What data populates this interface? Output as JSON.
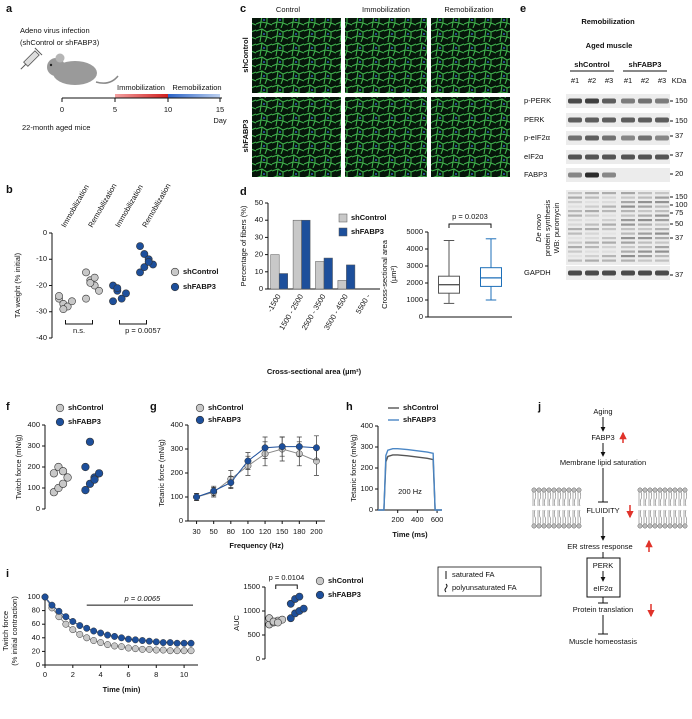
{
  "figure": {
    "panel_labels": [
      "a",
      "b",
      "c",
      "d",
      "e",
      "f",
      "g",
      "h",
      "i",
      "j"
    ]
  },
  "panel_a": {
    "title": [
      "Adeno virus infection",
      "(shControl or shFABP3)"
    ],
    "phases": [
      "Immobilization",
      "Remobilization"
    ],
    "days": [
      "0",
      "5",
      "10",
      "15"
    ],
    "day_label": "Day",
    "subjects": "22-month aged mice"
  },
  "panel_c": {
    "columns": [
      "Control",
      "Immobilization",
      "Remobilization"
    ],
    "rows": [
      "shControl",
      "shFABP3"
    ]
  },
  "panel_e": {
    "title": "Remobilization",
    "subtitle": "Aged muscle",
    "groups": [
      "shControl",
      "shFABP3"
    ],
    "lanes": [
      "#1",
      "#2",
      "#3",
      "#1",
      "#2",
      "#3"
    ],
    "unit": "KDa",
    "rows": [
      "p-PERK",
      "PERK",
      "p-eIF2α",
      "eIF2α",
      "FABP3"
    ],
    "puromycin_label": [
      "De novo",
      "protein synthesis",
      "WB: puromycin"
    ],
    "loading": "GAPDH",
    "markers": [
      "150",
      "150",
      "37",
      "37",
      "20",
      "150",
      "100",
      "75",
      "50",
      "37",
      "37"
    ]
  },
  "panel_j": {
    "nodes": [
      "Aging",
      "FABP3",
      "Membrane lipid saturation",
      "FLUIDITY",
      "ER stress response",
      "PERK",
      "eIF2α",
      "Protein translation",
      "Muscle homeostasis"
    ],
    "legend": [
      "saturated FA",
      "polyunsaturated FA"
    ]
  },
  "chart_data": [
    {
      "type": "strip",
      "ylabel": [
        "TA weight (% initial)"
      ],
      "categories": [
        "Immobilization",
        "Remobilization",
        "Immobilization",
        "Remobilization"
      ],
      "series": [
        {
          "name": "shControl",
          "color": "#c8c8c8",
          "groups": [
            [
              -25,
              -27,
              -28,
              -26,
              -24,
              -29
            ],
            [
              -15,
              -18,
              -20,
              -22,
              -25,
              -19,
              -17
            ]
          ]
        },
        {
          "name": "shFABP3",
          "color": "#1d4f9b",
          "groups": [
            [
              -20,
              -22,
              -25,
              -23,
              -26,
              -21
            ],
            [
              -5,
              -8,
              -10,
              -12,
              -15,
              -13,
              -11
            ]
          ]
        }
      ],
      "ylim": [
        -40,
        0
      ],
      "yticks": [
        -40,
        -30,
        -20,
        -10,
        0
      ],
      "annotations": [
        "n.s.",
        "p = 0.0057"
      ],
      "legend": "right"
    },
    {
      "type": "bar",
      "ylabel": [
        "Percentage of fibers (%)"
      ],
      "xlabel": "Cross-sectional area (µm²)",
      "categories": [
        "-1500",
        "1500 - 2500",
        "2500 - 3500",
        "3500 - 4500",
        "5500 -"
      ],
      "series": [
        {
          "name": "shControl",
          "color": "#c8c8c8",
          "values": [
            20,
            40,
            16,
            5,
            0
          ]
        },
        {
          "name": "shFABP3",
          "color": "#1d4f9b",
          "values": [
            9,
            40,
            18,
            14,
            0
          ]
        }
      ],
      "ylim": [
        0,
        50
      ],
      "yticks": [
        0,
        10,
        20,
        30,
        40,
        50
      ],
      "legend": "top-right"
    },
    {
      "type": "box",
      "ylabel": [
        "Cross-sectional area",
        "(µm²)"
      ],
      "series": [
        {
          "color": "#555555",
          "min": 800,
          "q1": 1400,
          "median": 1900,
          "q3": 2400,
          "max": 4500
        },
        {
          "color": "#1d6fb8",
          "min": 1000,
          "q1": 1800,
          "median": 2300,
          "q3": 2900,
          "max": 4600
        }
      ],
      "ylim": [
        0,
        5000
      ],
      "yticks": [
        0,
        1000,
        2000,
        3000,
        4000,
        5000
      ],
      "annotations": [
        "p = 0.0203"
      ]
    },
    {
      "type": "strip",
      "ylabel": [
        "Twitch force (mN/g)"
      ],
      "series": [
        {
          "name": "shControl",
          "color": "#c8c8c8",
          "groups": [
            [
              80,
              100,
              120,
              150,
              170,
              200,
              180
            ]
          ]
        },
        {
          "name": "shFABP3",
          "color": "#1d4f9b",
          "groups": [
            [
              90,
              120,
              150,
              170,
              200,
              320,
              140
            ]
          ]
        }
      ],
      "ylim": [
        0,
        400
      ],
      "yticks": [
        0,
        100,
        200,
        300,
        400
      ],
      "legend": "top"
    },
    {
      "type": "line",
      "ylabel": [
        "Tetanic force (mN/g)"
      ],
      "xlabel": "Frequency (Hz)",
      "categories": [
        30,
        50,
        80,
        100,
        120,
        150,
        180,
        200
      ],
      "series": [
        {
          "name": "shControl",
          "color": "#c8c8c8",
          "values": [
            100,
            120,
            175,
            230,
            280,
            300,
            280,
            250
          ],
          "errors": [
            15,
            20,
            35,
            40,
            50,
            50,
            50,
            60
          ]
        },
        {
          "name": "shFABP3",
          "color": "#1d4f9b",
          "values": [
            100,
            125,
            160,
            250,
            305,
            310,
            310,
            305
          ],
          "errors": [
            15,
            20,
            25,
            35,
            45,
            40,
            40,
            50
          ]
        }
      ],
      "ylim": [
        0,
        400
      ],
      "yticks": [
        0,
        100,
        200,
        300,
        400
      ],
      "legend": "top"
    },
    {
      "type": "line",
      "ylabel": [
        "Tetanic force (mN/g)"
      ],
      "xlabel": "Time (ms)",
      "x": [
        0,
        60,
        80,
        100,
        150,
        200,
        300,
        400,
        500,
        560,
        580,
        650
      ],
      "series": [
        {
          "name": "shControl",
          "color": "#555555",
          "values": [
            0,
            0,
            230,
            255,
            262,
            262,
            258,
            252,
            246,
            240,
            0,
            0
          ]
        },
        {
          "name": "shFABP3",
          "color": "#4a86c5",
          "values": [
            0,
            0,
            260,
            285,
            292,
            292,
            288,
            282,
            276,
            270,
            0,
            0
          ]
        }
      ],
      "xlim": [
        0,
        650
      ],
      "xticks": [
        200,
        400,
        600
      ],
      "ylim": [
        0,
        400
      ],
      "yticks": [
        0,
        100,
        200,
        300,
        400
      ],
      "markers": false,
      "annotations": [
        "200 Hz"
      ],
      "legend": "top"
    },
    {
      "type": "line",
      "ylabel": [
        "Twitch force",
        "(% initial contraction)"
      ],
      "xlabel": "Time (min)",
      "x": [
        0,
        0.5,
        1,
        1.5,
        2,
        2.5,
        3,
        3.5,
        4,
        4.5,
        5,
        5.5,
        6,
        6.5,
        7,
        7.5,
        8,
        8.5,
        9,
        9.5,
        10,
        10.5
      ],
      "series": [
        {
          "color": "#c8c8c8",
          "values": [
            100,
            84,
            71,
            60,
            52,
            45,
            40,
            36,
            33,
            30,
            28,
            27,
            25,
            24,
            23,
            23,
            22,
            22,
            21,
            21,
            21,
            21
          ]
        },
        {
          "color": "#1d4f9b",
          "values": [
            100,
            88,
            79,
            71,
            64,
            58,
            54,
            50,
            47,
            44,
            42,
            40,
            38,
            37,
            36,
            35,
            34,
            33,
            33,
            32,
            32,
            32
          ]
        }
      ],
      "xlim": [
        0,
        11
      ],
      "xticks": [
        0,
        2,
        4,
        6,
        8,
        10
      ],
      "ylim": [
        0,
        100
      ],
      "yticks": [
        0,
        20,
        40,
        60,
        80,
        100
      ],
      "annotations": [
        "p = 0.0065"
      ]
    },
    {
      "type": "strip",
      "ylabel": [
        "AUC"
      ],
      "series": [
        {
          "name": "shControl",
          "color": "#c8c8c8",
          "groups": [
            [
              720,
              760,
              800,
              820,
              850,
              780,
              760
            ]
          ]
        },
        {
          "name": "shFABP3",
          "color": "#1d4f9b",
          "groups": [
            [
              850,
              950,
              1000,
              1050,
              1150,
              1250,
              1300
            ]
          ]
        }
      ],
      "ylim": [
        0,
        1500
      ],
      "yticks": [
        0,
        500,
        1000,
        1500
      ],
      "annotations": [
        "p = 0.0104"
      ],
      "legend": "right"
    }
  ]
}
